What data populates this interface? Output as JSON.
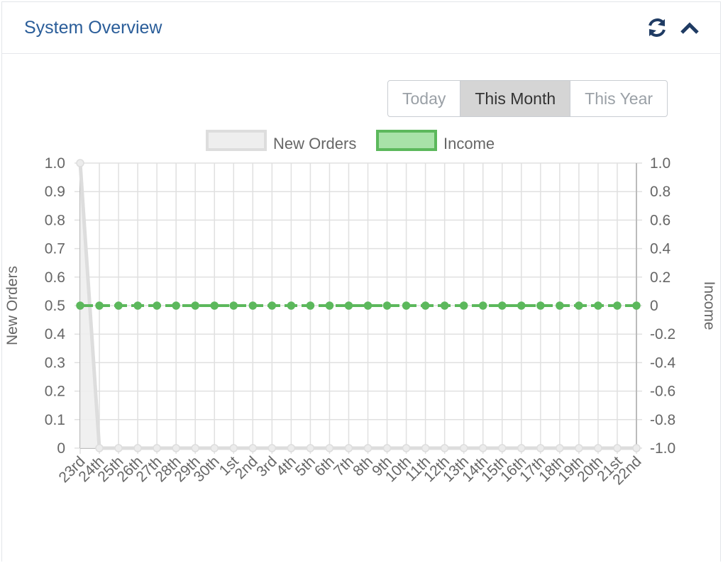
{
  "panel": {
    "title": "System Overview",
    "refresh_icon": "refresh-icon",
    "collapse_icon": "chevron-up-icon"
  },
  "range_buttons": [
    "Today",
    "This Month",
    "This Year"
  ],
  "active_range": "This Month",
  "colors": {
    "title": "#2a5d99",
    "orders_line": "#dddddd",
    "orders_fill": "#eeeeee",
    "income_line": "#5cb85c",
    "income_fill": "#a8e2a8",
    "grid": "#e0e0e0"
  },
  "chart_data": {
    "type": "line",
    "legend_position": "top-center",
    "grid": true,
    "categories": [
      "23rd",
      "24th",
      "25th",
      "26th",
      "27th",
      "28th",
      "29th",
      "30th",
      "1st",
      "2nd",
      "3rd",
      "4th",
      "5th",
      "6th",
      "7th",
      "8th",
      "9th",
      "10th",
      "11th",
      "12th",
      "13th",
      "14th",
      "15th",
      "16th",
      "17th",
      "18th",
      "19th",
      "20th",
      "21st",
      "22nd"
    ],
    "series": [
      {
        "name": "New Orders",
        "axis": "left",
        "fill": true,
        "values": [
          1,
          0,
          0,
          0,
          0,
          0,
          0,
          0,
          0,
          0,
          0,
          0,
          0,
          0,
          0,
          0,
          0,
          0,
          0,
          0,
          0,
          0,
          0,
          0,
          0,
          0,
          0,
          0,
          0,
          0
        ]
      },
      {
        "name": "Income",
        "axis": "right",
        "fill": false,
        "values": [
          0,
          0,
          0,
          0,
          0,
          0,
          0,
          0,
          0,
          0,
          0,
          0,
          0,
          0,
          0,
          0,
          0,
          0,
          0,
          0,
          0,
          0,
          0,
          0,
          0,
          0,
          0,
          0,
          0,
          0
        ]
      }
    ],
    "y_left": {
      "label": "New Orders",
      "ylim": [
        0,
        1
      ],
      "ticks": [
        "1.0",
        "0.9",
        "0.8",
        "0.7",
        "0.6",
        "0.5",
        "0.4",
        "0.3",
        "0.2",
        "0.1",
        "0"
      ]
    },
    "y_right": {
      "label": "Income",
      "ylim": [
        -1,
        1
      ],
      "ticks": [
        "1.0",
        "0.8",
        "0.6",
        "0.4",
        "0.2",
        "0",
        "-0.2",
        "-0.4",
        "-0.6",
        "-0.8",
        "-1.0"
      ]
    }
  }
}
